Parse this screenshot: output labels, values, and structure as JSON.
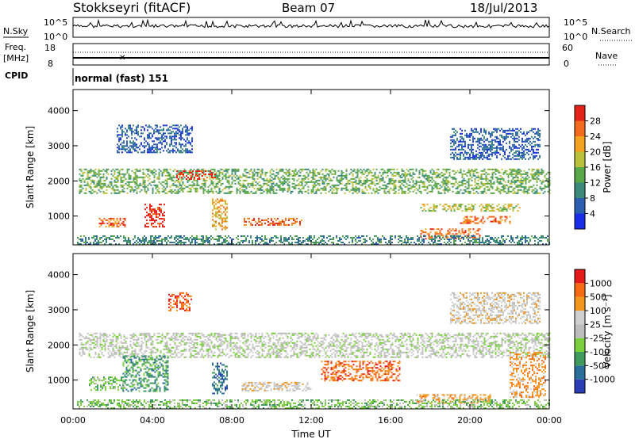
{
  "header": {
    "station": "Stokkseyri (fitACF)",
    "beam": "Beam 07",
    "date": "18/Jul/2013"
  },
  "noise_panel": {
    "left_label": "N.Sky",
    "right_label": "N.Search",
    "left_top": "10^5",
    "left_bottom": "10^0",
    "right_top": "10^5",
    "right_bottom": "10^0"
  },
  "freq_panel": {
    "left_label_1": "Freq.",
    "left_label_2": "[MHz]",
    "left_top": "18",
    "left_bottom": "8",
    "right_label": "Nave",
    "right_top": "60",
    "right_bottom": "0"
  },
  "cpid_panel": {
    "label": "CPID",
    "mode": "normal (fast) 151"
  },
  "x_axis": {
    "label": "Time UT",
    "ticks": [
      "00:00",
      "04:00",
      "08:00",
      "12:00",
      "16:00",
      "20:00",
      "00:00"
    ]
  },
  "chart_data": [
    {
      "type": "heatmap",
      "panel": "power",
      "ylabel": "Slant Range [km]",
      "y_ticks": [
        "1000",
        "2000",
        "3000",
        "4000"
      ],
      "ylim": [
        180,
        4600
      ],
      "xlim_hours": [
        0,
        24
      ],
      "colorbar": {
        "label": "Power [dB]",
        "ticks": [
          "4",
          "8",
          "12",
          "16",
          "20",
          "24",
          "28"
        ],
        "colors": [
          "#1a2ee8",
          "#2c5fb0",
          "#3b8a7a",
          "#5aa84a",
          "#b9c23a",
          "#f2a21e",
          "#f26a1b",
          "#e2231a"
        ]
      },
      "features": [
        {
          "t0": 0.3,
          "t1": 24,
          "r0": 1650,
          "r1": 2350,
          "level": 3
        },
        {
          "t0": 5.2,
          "t1": 7.2,
          "r0": 2050,
          "r1": 2300,
          "level": 7
        },
        {
          "t0": 3.6,
          "t1": 4.6,
          "r0": 700,
          "r1": 1350,
          "level": 7
        },
        {
          "t0": 7.0,
          "t1": 7.8,
          "r0": 600,
          "r1": 1500,
          "level": 5
        },
        {
          "t0": 8.6,
          "t1": 11.5,
          "r0": 750,
          "r1": 950,
          "level": 6
        },
        {
          "t0": 1.3,
          "t1": 2.6,
          "r0": 700,
          "r1": 950,
          "level": 6
        },
        {
          "t0": 17.5,
          "t1": 20.5,
          "r0": 350,
          "r1": 650,
          "level": 6
        },
        {
          "t0": 19.5,
          "t1": 22,
          "r0": 800,
          "r1": 1000,
          "level": 6
        },
        {
          "t0": 17.5,
          "t1": 22.5,
          "r0": 1150,
          "r1": 1350,
          "level": 4
        },
        {
          "t0": 2.2,
          "t1": 6.0,
          "r0": 2800,
          "r1": 3600,
          "level": 1
        },
        {
          "t0": 19.0,
          "t1": 23.5,
          "r0": 2600,
          "r1": 3500,
          "level": 1
        },
        {
          "t0": 0.2,
          "t1": 24,
          "r0": 180,
          "r1": 450,
          "level": 2
        }
      ]
    },
    {
      "type": "heatmap",
      "panel": "velocity",
      "ylabel": "Slant Range [km]",
      "y_ticks": [
        "1000",
        "2000",
        "3000",
        "4000"
      ],
      "ylim": [
        180,
        4600
      ],
      "xlim_hours": [
        0,
        24
      ],
      "colorbar": {
        "label": "Velocity [m s⁻¹]",
        "ticks": [
          "1000",
          "500",
          "100",
          "25",
          "-25",
          "-100",
          "-500",
          "-1000"
        ],
        "colors": [
          "#2a3fb5",
          "#2a6f9a",
          "#3f9a5e",
          "#7ccf3c",
          "#bdbdbd",
          "#cfcfcf",
          "#f3961e",
          "#f56a12",
          "#e21a1a"
        ]
      },
      "features": [
        {
          "t0": 0.3,
          "t1": 24,
          "r0": 1650,
          "r1": 2350,
          "level": 4
        },
        {
          "t0": 2.5,
          "t1": 4.8,
          "r0": 700,
          "r1": 1700,
          "level": 2
        },
        {
          "t0": 7.0,
          "t1": 7.8,
          "r0": 600,
          "r1": 1500,
          "level": 1
        },
        {
          "t0": 12.5,
          "t1": 16.5,
          "r0": 1000,
          "r1": 1550,
          "level": 7
        },
        {
          "t0": 17.3,
          "t1": 21.0,
          "r0": 350,
          "r1": 600,
          "level": 6
        },
        {
          "t0": 22.0,
          "t1": 23.8,
          "r0": 500,
          "r1": 1800,
          "level": 6
        },
        {
          "t0": 8.5,
          "t1": 12.0,
          "r0": 700,
          "r1": 950,
          "level": 5
        },
        {
          "t0": 0.8,
          "t1": 2.5,
          "r0": 700,
          "r1": 1100,
          "level": 3
        },
        {
          "t0": 4.8,
          "t1": 6.0,
          "r0": 3000,
          "r1": 3500,
          "level": 7
        },
        {
          "t0": 19.0,
          "t1": 23.5,
          "r0": 2600,
          "r1": 3500,
          "level": 5
        },
        {
          "t0": 0.2,
          "t1": 24,
          "r0": 180,
          "r1": 450,
          "level": 3
        }
      ]
    }
  ]
}
